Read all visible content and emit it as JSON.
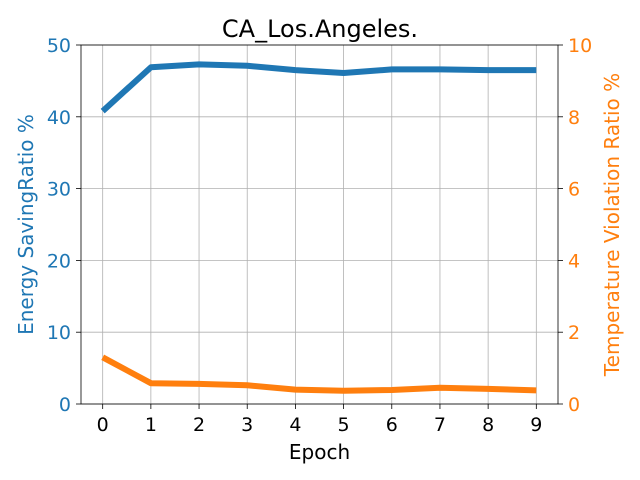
{
  "chart_data": {
    "type": "line",
    "title": "CA_Los.Angeles.",
    "xlabel": "Epoch",
    "ylabel_left": "Energy SavingRatio %",
    "ylabel_right": "Temperature Violation Ratio %",
    "x": [
      0,
      1,
      2,
      3,
      4,
      5,
      6,
      7,
      8,
      9
    ],
    "xlim": [
      -0.45,
      9.45
    ],
    "ylim_left": [
      0,
      50
    ],
    "ylim_right": [
      0,
      10
    ],
    "yticks_left": [
      0,
      10,
      20,
      30,
      40,
      50
    ],
    "yticks_right": [
      0,
      2,
      4,
      6,
      8,
      10
    ],
    "grid": true,
    "series": [
      {
        "axis": "left",
        "color": "#1f77b4",
        "values": [
          40.8,
          46.9,
          47.3,
          47.1,
          46.5,
          46.1,
          46.6,
          46.6,
          46.5,
          46.5
        ]
      },
      {
        "axis": "right",
        "color": "#ff7f0e",
        "values": [
          1.3,
          0.58,
          0.56,
          0.52,
          0.4,
          0.37,
          0.39,
          0.45,
          0.42,
          0.38
        ]
      }
    ]
  }
}
